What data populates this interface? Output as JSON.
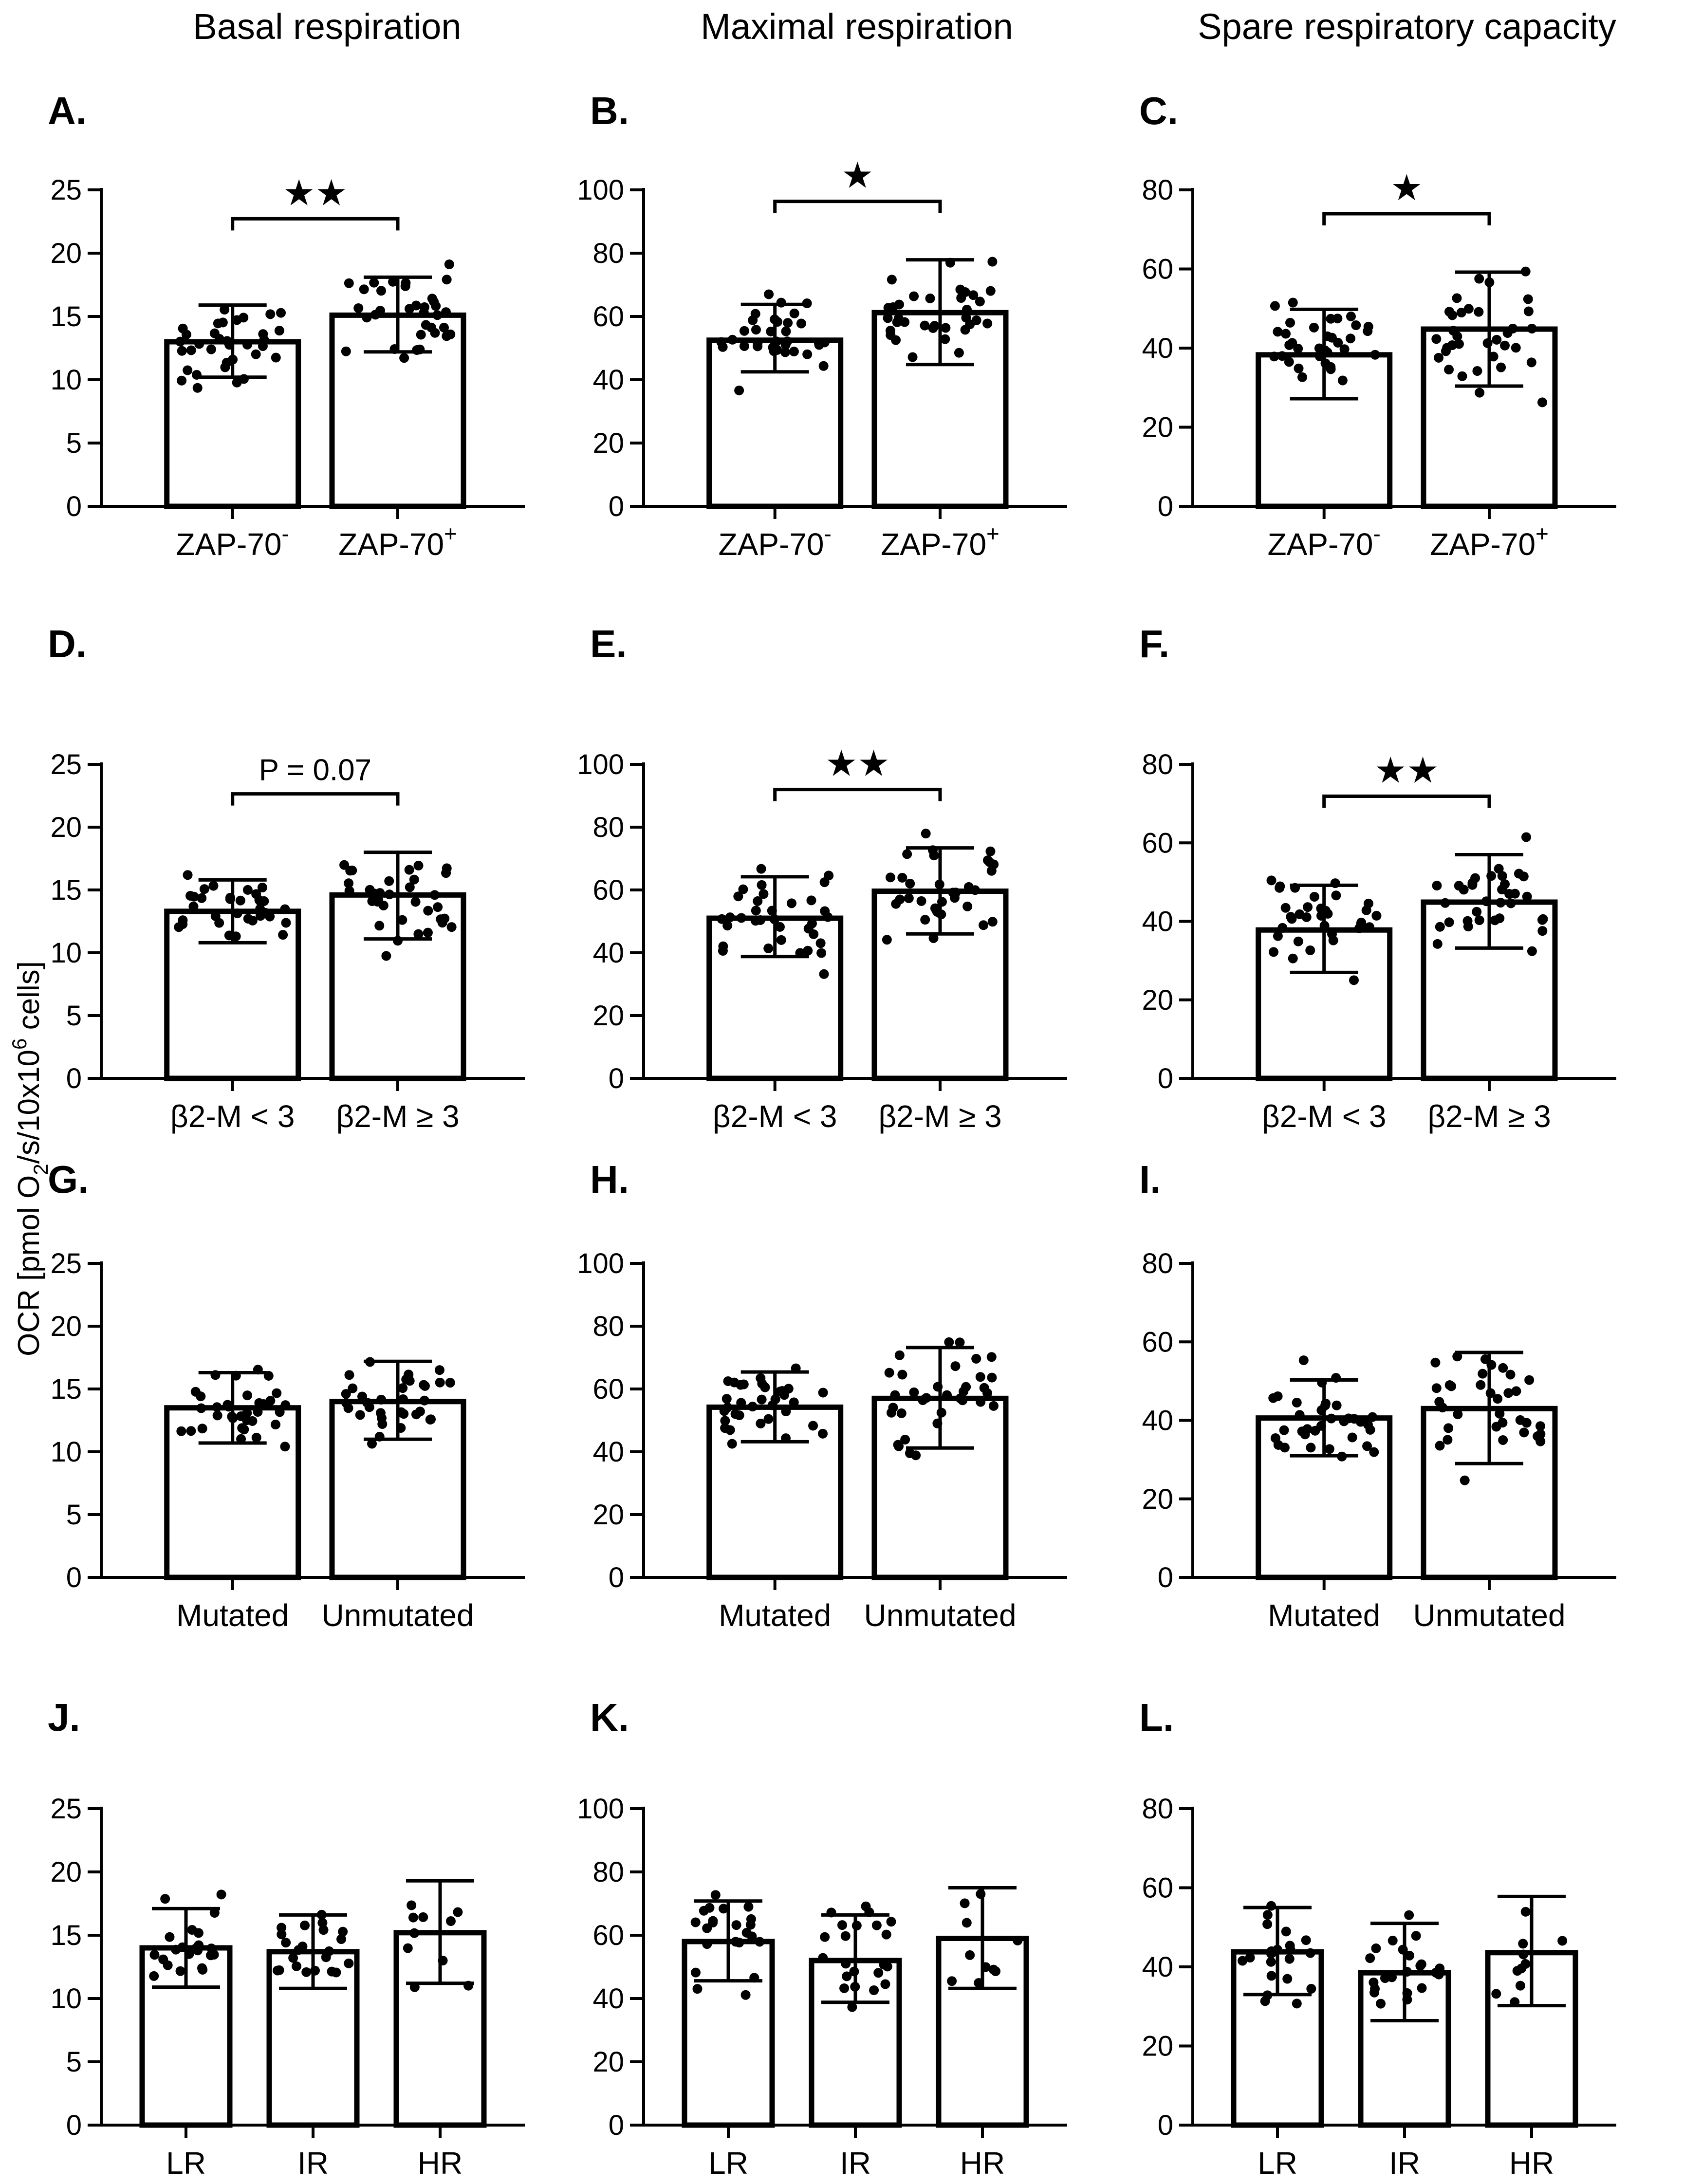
{
  "column_titles": [
    "Basal respiration",
    "Maximal respiration",
    "Spare respiratory capacity"
  ],
  "y_axis_label": "OCR [pmol O2/s/10x10^6 cells]",
  "y_axis_label_parts": {
    "a": "OCR [pmol O",
    "sub": "2",
    "b": "/s/10x10",
    "sup": "6",
    "c": " cells]"
  },
  "chart_data": [
    {
      "panel": "A.",
      "type": "bar",
      "row": 0,
      "col": 0,
      "ylim": [
        0,
        25
      ],
      "yticks": [
        0,
        5,
        10,
        15,
        20,
        25
      ],
      "categories": [
        {
          "base": "ZAP-70",
          "sup": "-"
        },
        {
          "base": "ZAP-70",
          "sup": "+"
        }
      ],
      "means": [
        13.0,
        15.1
      ],
      "sd_low": [
        10.2,
        12.2
      ],
      "sd_high": [
        15.9,
        18.1
      ],
      "significance": {
        "from": 0,
        "to": 1,
        "label": "★★"
      }
    },
    {
      "panel": "B.",
      "type": "bar",
      "row": 0,
      "col": 1,
      "ylim": [
        0,
        100
      ],
      "yticks": [
        0,
        20,
        40,
        60,
        80,
        100
      ],
      "categories": [
        {
          "base": "ZAP-70",
          "sup": "-"
        },
        {
          "base": "ZAP-70",
          "sup": "+"
        }
      ],
      "means": [
        52.5,
        61.2
      ],
      "sd_low": [
        42.5,
        44.8
      ],
      "sd_high": [
        63.8,
        77.9
      ],
      "significance": {
        "from": 0,
        "to": 1,
        "label": "★"
      }
    },
    {
      "panel": "C.",
      "type": "bar",
      "row": 0,
      "col": 2,
      "ylim": [
        0,
        80
      ],
      "yticks": [
        0,
        20,
        40,
        60,
        80
      ],
      "categories": [
        {
          "base": "ZAP-70",
          "sup": "-"
        },
        {
          "base": "ZAP-70",
          "sup": "+"
        }
      ],
      "means": [
        38.3,
        44.8
      ],
      "sd_low": [
        27.2,
        30.4
      ],
      "sd_high": [
        49.8,
        59.2
      ],
      "significance": {
        "from": 0,
        "to": 1,
        "label": "★"
      }
    },
    {
      "panel": "D.",
      "type": "bar",
      "row": 1,
      "col": 0,
      "ylim": [
        0,
        25
      ],
      "yticks": [
        0,
        5,
        10,
        15,
        20,
        25
      ],
      "categories": [
        {
          "base": "β2-M < 3",
          "sup": ""
        },
        {
          "base": "β2-M ≥ 3",
          "sup": ""
        }
      ],
      "means": [
        13.3,
        14.6
      ],
      "sd_low": [
        10.8,
        11.1
      ],
      "sd_high": [
        15.8,
        18.0
      ],
      "significance": {
        "from": 0,
        "to": 1,
        "label": "P = 0.07"
      }
    },
    {
      "panel": "E.",
      "type": "bar",
      "row": 1,
      "col": 1,
      "ylim": [
        0,
        100
      ],
      "yticks": [
        0,
        20,
        40,
        60,
        80,
        100
      ],
      "categories": [
        {
          "base": "β2-M < 3",
          "sup": ""
        },
        {
          "base": "β2-M ≥ 3",
          "sup": ""
        }
      ],
      "means": [
        51.0,
        59.6
      ],
      "sd_low": [
        38.8,
        46.0
      ],
      "sd_high": [
        64.2,
        73.4
      ],
      "significance": {
        "from": 0,
        "to": 1,
        "label": "★★"
      }
    },
    {
      "panel": "F.",
      "type": "bar",
      "row": 1,
      "col": 2,
      "ylim": [
        0,
        80
      ],
      "yticks": [
        0,
        20,
        40,
        60,
        80
      ],
      "categories": [
        {
          "base": "β2-M < 3",
          "sup": ""
        },
        {
          "base": "β2-M ≥ 3",
          "sup": ""
        }
      ],
      "means": [
        37.8,
        44.9
      ],
      "sd_low": [
        27.0,
        33.2
      ],
      "sd_high": [
        49.2,
        57.0
      ],
      "significance": {
        "from": 0,
        "to": 1,
        "label": "★★"
      }
    },
    {
      "panel": "G.",
      "type": "bar",
      "row": 2,
      "col": 0,
      "ylim": [
        0,
        25
      ],
      "yticks": [
        0,
        5,
        10,
        15,
        20,
        25
      ],
      "categories": [
        {
          "base": "Mutated",
          "sup": ""
        },
        {
          "base": "Unmutated",
          "sup": ""
        }
      ],
      "means": [
        13.5,
        14.0
      ],
      "sd_low": [
        10.7,
        11.0
      ],
      "sd_high": [
        16.3,
        17.2
      ],
      "significance": null
    },
    {
      "panel": "H.",
      "type": "bar",
      "row": 2,
      "col": 1,
      "ylim": [
        0,
        100
      ],
      "yticks": [
        0,
        20,
        40,
        60,
        80,
        100
      ],
      "categories": [
        {
          "base": "Mutated",
          "sup": ""
        },
        {
          "base": "Unmutated",
          "sup": ""
        }
      ],
      "means": [
        54.2,
        57.0
      ],
      "sd_low": [
        43.2,
        41.2
      ],
      "sd_high": [
        65.4,
        73.2
      ],
      "significance": null
    },
    {
      "panel": "I.",
      "type": "bar",
      "row": 2,
      "col": 2,
      "ylim": [
        0,
        80
      ],
      "yticks": [
        0,
        20,
        40,
        60,
        80
      ],
      "categories": [
        {
          "base": "Mutated",
          "sup": ""
        },
        {
          "base": "Unmutated",
          "sup": ""
        }
      ],
      "means": [
        40.6,
        43.0
      ],
      "sd_low": [
        31.0,
        29.0
      ],
      "sd_high": [
        50.3,
        57.3
      ],
      "significance": null
    },
    {
      "panel": "J.",
      "type": "bar",
      "row": 3,
      "col": 0,
      "ylim": [
        0,
        25
      ],
      "yticks": [
        0,
        5,
        10,
        15,
        20,
        25
      ],
      "categories": [
        {
          "base": "LR",
          "sup": ""
        },
        {
          "base": "IR",
          "sup": ""
        },
        {
          "base": "HR",
          "sup": ""
        }
      ],
      "means": [
        14.0,
        13.7,
        15.2
      ],
      "sd_low": [
        10.9,
        10.8,
        11.2
      ],
      "sd_high": [
        17.1,
        16.6,
        19.3
      ],
      "significance": null
    },
    {
      "panel": "K.",
      "type": "bar",
      "row": 3,
      "col": 1,
      "ylim": [
        0,
        100
      ],
      "yticks": [
        0,
        20,
        40,
        60,
        80,
        100
      ],
      "categories": [
        {
          "base": "LR",
          "sup": ""
        },
        {
          "base": "IR",
          "sup": ""
        },
        {
          "base": "HR",
          "sup": ""
        }
      ],
      "means": [
        58.0,
        52.0,
        59.0
      ],
      "sd_low": [
        45.6,
        38.8,
        43.2
      ],
      "sd_high": [
        70.8,
        66.4,
        75.0
      ],
      "significance": null
    },
    {
      "panel": "L.",
      "type": "bar",
      "row": 3,
      "col": 2,
      "ylim": [
        0,
        80
      ],
      "yticks": [
        0,
        20,
        40,
        60,
        80
      ],
      "categories": [
        {
          "base": "LR",
          "sup": ""
        },
        {
          "base": "IR",
          "sup": ""
        },
        {
          "base": "HR",
          "sup": ""
        }
      ],
      "means": [
        43.8,
        38.5,
        43.6
      ],
      "sd_low": [
        33.0,
        26.4,
        30.2
      ],
      "sd_high": [
        55.0,
        51.0,
        57.8
      ],
      "significance": null
    }
  ]
}
